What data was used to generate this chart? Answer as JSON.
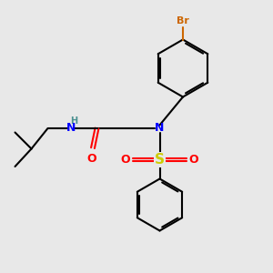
{
  "bg_color": "#e8e8e8",
  "bond_color": "#000000",
  "N_color": "#0000ff",
  "O_color": "#ff0000",
  "S_color": "#cccc00",
  "Br_color": "#cc6600",
  "H_color": "#4a9090",
  "line_width": 1.5,
  "figsize": [
    3.0,
    3.0
  ],
  "dpi": 100,
  "xlim": [
    0,
    10
  ],
  "ylim": [
    0,
    10
  ]
}
